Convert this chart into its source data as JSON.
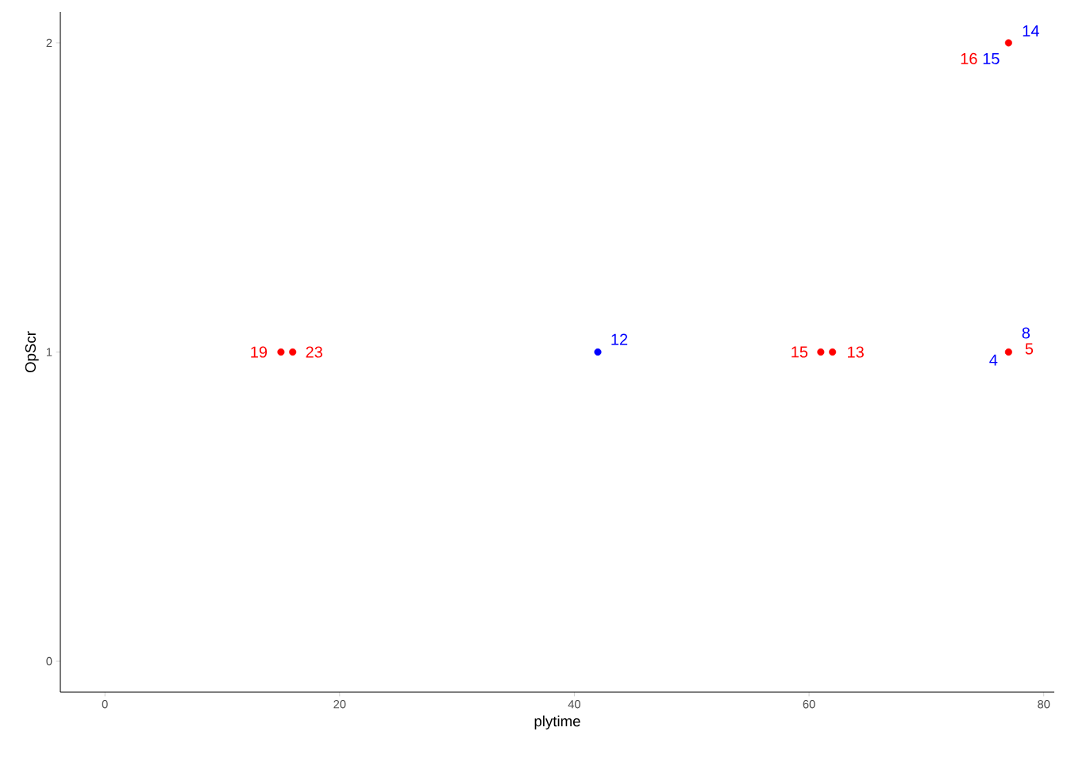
{
  "chart_data": {
    "type": "scatter",
    "xlabel": "plytime",
    "ylabel": "OpScr",
    "xlim": [
      -3.8,
      80.9
    ],
    "ylim": [
      -0.1,
      2.1
    ],
    "xticks": [
      0,
      20,
      40,
      60,
      80
    ],
    "yticks": [
      0,
      1,
      2
    ],
    "marker": "circle",
    "series": [
      {
        "color": "#0000ff",
        "x": [
          42
        ],
        "values": [
          1
        ]
      },
      {
        "color": "#ff0000",
        "x": [
          15,
          16,
          61,
          62,
          77,
          77
        ],
        "values": [
          1,
          1,
          1,
          1,
          1,
          2
        ]
      }
    ],
    "annotations": [
      {
        "text": "12",
        "x": 42,
        "y": 1
      },
      {
        "text": "4",
        "x": 77,
        "y": 1
      },
      {
        "text": "8",
        "x": 77,
        "y": 1
      },
      {
        "text": "14",
        "x": 77,
        "y": 2
      },
      {
        "text": "15",
        "x": 77,
        "y": 2
      },
      {
        "text": "19",
        "x": 15,
        "y": 1
      },
      {
        "text": "23",
        "x": 16,
        "y": 1
      },
      {
        "text": "15",
        "x": 61,
        "y": 1
      },
      {
        "text": "13",
        "x": 62,
        "y": 1
      },
      {
        "text": "5",
        "x": 77,
        "y": 1
      },
      {
        "text": "16",
        "x": 77,
        "y": 2
      }
    ]
  }
}
